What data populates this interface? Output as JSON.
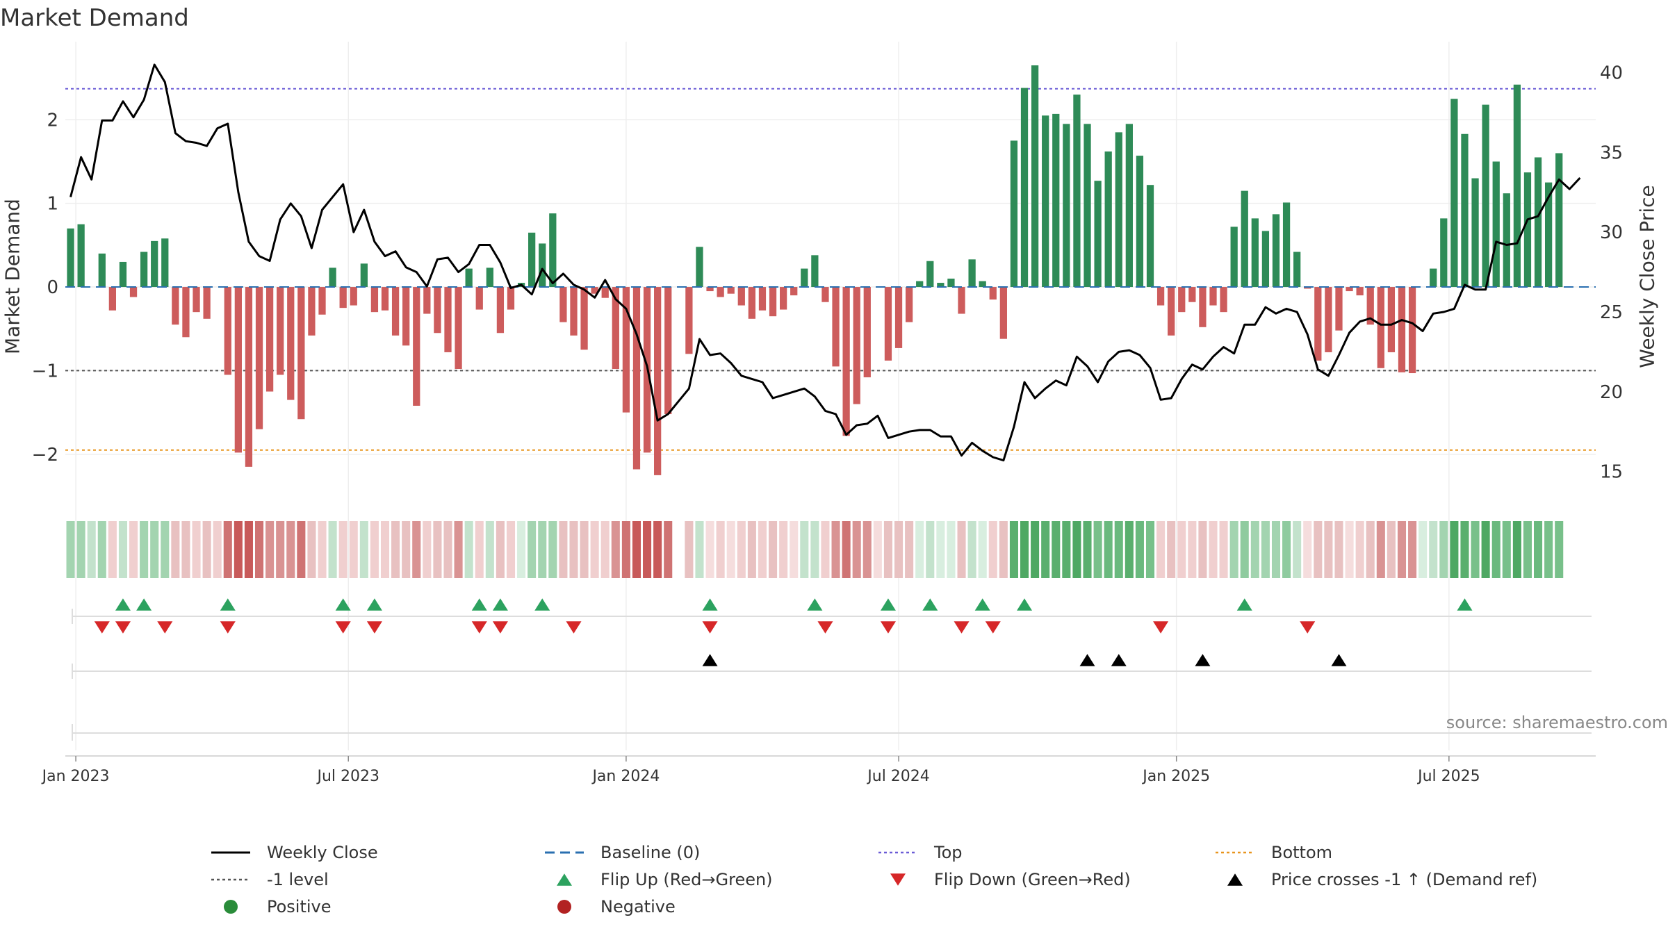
{
  "chart_data": {
    "type": "bar",
    "title": "Market Demand",
    "ylabel_left": "Market Demand",
    "ylabel_right": "Weekly Close Price",
    "source": "source: sharemaestro.com",
    "y_left_range": [
      -2.55,
      2.85
    ],
    "y_left_ticks": [
      -2,
      -1,
      0,
      1,
      2
    ],
    "y_left_tick_labels": [
      "−2",
      "−1",
      "0",
      "1",
      "2"
    ],
    "y_right_range": [
      13.2,
      41.5
    ],
    "y_right_ticks": [
      15,
      20,
      25,
      30,
      35,
      40
    ],
    "y_right_tick_labels": [
      "15",
      "20",
      "25",
      "30",
      "35",
      "40"
    ],
    "x_start": "2022-12-26",
    "weeks": 146,
    "x_ticks": [
      {
        "week": 1,
        "label": "Jan 2023"
      },
      {
        "week": 27,
        "label": "Jul 2023"
      },
      {
        "week": 53.5,
        "label": "Jan 2024"
      },
      {
        "week": 79.5,
        "label": "Jul 2024"
      },
      {
        "week": 106,
        "label": "Jan 2025"
      },
      {
        "week": 132,
        "label": "Jul 2025"
      }
    ],
    "reference_lines": [
      {
        "name": "Top",
        "value": 2.37,
        "color": "#6b5cd6",
        "dash": "dot"
      },
      {
        "name": "-1 level",
        "value": -1,
        "color": "#555555",
        "dash": "dot"
      },
      {
        "name": "Bottom",
        "value": -1.95,
        "color": "#e8951e",
        "dash": "dot"
      },
      {
        "name": "Baseline (0)",
        "value": 0,
        "color": "#2a6fb0",
        "dash": "dash"
      }
    ],
    "demand": [
      0.7,
      0.75,
      0,
      0.4,
      -0.28,
      0.3,
      -0.12,
      0.42,
      0.55,
      0.58,
      -0.45,
      -0.6,
      -0.3,
      -0.38,
      0,
      -1.05,
      -1.98,
      -2.15,
      -1.7,
      -1.25,
      -1.05,
      -1.35,
      -1.58,
      -0.58,
      -0.33,
      0.23,
      -0.25,
      -0.22,
      0.28,
      -0.3,
      -0.28,
      -0.58,
      -0.7,
      -1.42,
      -0.32,
      -0.55,
      -0.78,
      -0.98,
      0.22,
      -0.27,
      0.23,
      -0.55,
      -0.27,
      0.05,
      0.65,
      0.52,
      0.88,
      -0.42,
      -0.58,
      -0.75,
      -0.08,
      -0.13,
      -0.98,
      -1.5,
      -2.18,
      -1.98,
      -2.25,
      -1.52,
      0,
      -0.8,
      0.48,
      -0.05,
      -0.12,
      -0.08,
      -0.22,
      -0.38,
      -0.28,
      -0.35,
      -0.27,
      -0.1,
      0.22,
      0.38,
      -0.18,
      -0.95,
      -1.78,
      -1.4,
      -1.08,
      0,
      -0.88,
      -0.73,
      -0.42,
      0.07,
      0.31,
      0.05,
      0.1,
      -0.32,
      0.33,
      0.07,
      -0.15,
      -0.62,
      1.75,
      2.38,
      2.65,
      2.05,
      2.07,
      1.95,
      2.3,
      1.95,
      1.27,
      1.62,
      1.85,
      1.95,
      1.57,
      1.22,
      -0.22,
      -0.58,
      -0.3,
      -0.18,
      -0.48,
      -0.22,
      -0.3,
      0.72,
      1.15,
      0.82,
      0.67,
      0.87,
      1.01,
      0.42,
      -0.02,
      -0.88,
      -0.78,
      -0.52,
      -0.05,
      -0.1,
      -0.45,
      -0.97,
      -0.78,
      -1.02,
      -1.03,
      0,
      0.22,
      0.82,
      2.25,
      1.83,
      1.3,
      2.18,
      1.5,
      1.12,
      2.42,
      1.37,
      1.55,
      1.25,
      1.6
    ],
    "strip_colors": [
      "#a3d4b0",
      "#a3d4b0",
      "#c3e2cc",
      "#a3d4b0",
      "#f0cfcf",
      "#c3e2cc",
      "#f0cfcf",
      "#a3d4b0",
      "#a3d4b0",
      "#a3d4b0",
      "#e8c1c1",
      "#e8c1c1",
      "#f0cfcf",
      "#e8c1c1",
      "#f0cfcf",
      "#cf7373",
      "#c85a5a",
      "#c85a5a",
      "#cf7373",
      "#d99393",
      "#d99393",
      "#d99393",
      "#cf7373",
      "#e8c1c1",
      "#f0cfcf",
      "#c3e2cc",
      "#f0cfcf",
      "#f0cfcf",
      "#c3e2cc",
      "#f0cfcf",
      "#f0cfcf",
      "#e8c1c1",
      "#e8c1c1",
      "#d99393",
      "#f0cfcf",
      "#e8c1c1",
      "#e8c1c1",
      "#d99393",
      "#c3e2cc",
      "#f0cfcf",
      "#c3e2cc",
      "#e8c1c1",
      "#f0cfcf",
      "#d8eedf",
      "#a3d4b0",
      "#a3d4b0",
      "#a3d4b0",
      "#e8c1c1",
      "#e8c1c1",
      "#e8c1c1",
      "#f0cfcf",
      "#f0cfcf",
      "#d99393",
      "#cf7373",
      "#c85a5a",
      "#c85a5a",
      "#c85a5a",
      "#cf7373",
      "#ffffff",
      "#e8c1c1",
      "#c3e2cc",
      "#f5dddd",
      "#f0cfcf",
      "#f5dddd",
      "#f0cfcf",
      "#e8c1c1",
      "#f0cfcf",
      "#e8c1c1",
      "#f0cfcf",
      "#f5dddd",
      "#c3e2cc",
      "#c3e2cc",
      "#f0cfcf",
      "#d99393",
      "#cf7373",
      "#d99393",
      "#d99393",
      "#f5dddd",
      "#e8c1c1",
      "#e8c1c1",
      "#e8c1c1",
      "#d8eedf",
      "#c3e2cc",
      "#d8eedf",
      "#d8eedf",
      "#e8c1c1",
      "#c3e2cc",
      "#d8eedf",
      "#f0cfcf",
      "#e8c1c1",
      "#5aaf6e",
      "#4ea863",
      "#4ea863",
      "#5aaf6e",
      "#5aaf6e",
      "#5aaf6e",
      "#4ea863",
      "#5aaf6e",
      "#78c08a",
      "#6ab97e",
      "#6ab97e",
      "#5aaf6e",
      "#6ab97e",
      "#78c08a",
      "#f0cfcf",
      "#e8c1c1",
      "#f0cfcf",
      "#f0cfcf",
      "#e8c1c1",
      "#f0cfcf",
      "#f0cfcf",
      "#a3d4b0",
      "#8fcb9f",
      "#a3d4b0",
      "#a3d4b0",
      "#a3d4b0",
      "#8fcb9f",
      "#c3e2cc",
      "#f5dddd",
      "#e8c1c1",
      "#e8c1c1",
      "#e8c1c1",
      "#f5dddd",
      "#f0cfcf",
      "#e8c1c1",
      "#d99393",
      "#e8c1c1",
      "#d99393",
      "#d99393",
      "#d8eedf",
      "#c3e2cc",
      "#a3d4b0",
      "#4ea863",
      "#5aaf6e",
      "#78c08a",
      "#4ea863",
      "#6ab97e",
      "#78c08a",
      "#4ea863",
      "#78c08a",
      "#6ab97e",
      "#78c08a",
      "#78c08a"
    ],
    "flip_up_weeks": [
      5,
      7,
      15,
      26,
      29,
      39,
      41,
      45,
      61,
      71,
      78,
      82,
      87,
      91,
      112,
      133
    ],
    "flip_down_weeks": [
      3,
      5,
      9,
      15,
      26,
      29,
      39,
      41,
      48,
      61,
      72,
      78,
      85,
      88,
      104,
      118
    ],
    "price_cross_weeks": [
      61,
      97,
      100,
      108,
      121
    ],
    "close": [
      32.2,
      34.7,
      33.3,
      37,
      37,
      38.2,
      37.2,
      38.3,
      40.5,
      39.4,
      36.2,
      35.7,
      35.6,
      35.4,
      36.5,
      36.8,
      32.5,
      29.4,
      28.5,
      28.2,
      30.8,
      31.8,
      31,
      29,
      31.4,
      32.2,
      33,
      30,
      31.4,
      29.4,
      28.5,
      28.8,
      27.8,
      27.5,
      26.6,
      28.3,
      28.4,
      27.5,
      28,
      29.2,
      29.2,
      28.1,
      26.5,
      26.7,
      26.1,
      27.7,
      26.8,
      27.4,
      26.7,
      26.4,
      25.9,
      27,
      25.8,
      25.2,
      23.6,
      21.6,
      18.2,
      18.6,
      19.4,
      20.2,
      23.3,
      22.3,
      22.4,
      21.8,
      21,
      20.8,
      20.6,
      19.6,
      19.8,
      20,
      20.2,
      19.7,
      18.8,
      18.6,
      17.3,
      17.9,
      18,
      18.5,
      17.1,
      17.3,
      17.5,
      17.6,
      17.6,
      17.2,
      17.2,
      16,
      16.8,
      16.3,
      15.9,
      15.7,
      17.8,
      20.6,
      19.6,
      20.2,
      20.7,
      20.4,
      22.2,
      21.6,
      20.6,
      21.9,
      22.5,
      22.6,
      22.3,
      21.5,
      19.5,
      19.6,
      20.8,
      21.7,
      21.4,
      22.2,
      22.8,
      22.4,
      24.2,
      24.2,
      25.3,
      24.9,
      25.2,
      25,
      23.6,
      21.4,
      21,
      22.3,
      23.7,
      24.4,
      24.6,
      24.2,
      24.2,
      24.5,
      24.3,
      23.8,
      24.9,
      25,
      25.2,
      26.7,
      26.4,
      26.4,
      29.4,
      29.2,
      29.3,
      30.8,
      31,
      32.2,
      33.3,
      32.7,
      33.4
    ]
  },
  "legend": {
    "items": [
      {
        "label": "Weekly Close",
        "symbol": "line-solid",
        "color": "#000000"
      },
      {
        "label": "Baseline (0)",
        "symbol": "line-dash",
        "color": "#2a6fb0"
      },
      {
        "label": "Top",
        "symbol": "line-dot",
        "color": "#6b5cd6"
      },
      {
        "label": "Bottom",
        "symbol": "line-dot",
        "color": "#e8951e"
      },
      {
        "label": "-1 level",
        "symbol": "line-dot",
        "color": "#555555"
      },
      {
        "label": "Flip Up (Red→Green)",
        "symbol": "triangle-up",
        "color": "#2ca25f"
      },
      {
        "label": "Flip Down (Green→Red)",
        "symbol": "triangle-down",
        "color": "#d62728"
      },
      {
        "label": "Price crosses -1 ↑ (Demand ref)",
        "symbol": "triangle-up",
        "color": "#000000"
      },
      {
        "label": "Positive",
        "symbol": "circle",
        "color": "#2a8c3a"
      },
      {
        "label": "Negative",
        "symbol": "circle",
        "color": "#b22222"
      }
    ]
  },
  "colors": {
    "positive_bar": "#2e8b57",
    "negative_bar": "#cd5c5c",
    "close_line": "#000000",
    "grid": "#dddddd"
  }
}
